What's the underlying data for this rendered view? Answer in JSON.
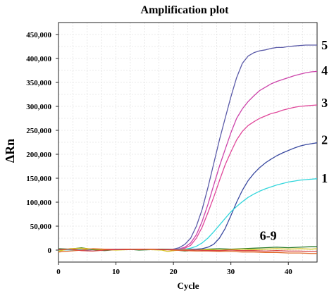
{
  "chart_data": {
    "type": "line",
    "title": "Amplification plot",
    "xlabel": "Cycle",
    "ylabel": "ΔRn",
    "xlim": [
      0,
      45
    ],
    "ylim": [
      -25000,
      475000
    ],
    "xticks": [
      0,
      10,
      20,
      30,
      40
    ],
    "yticks": [
      0,
      50000,
      100000,
      150000,
      200000,
      250000,
      300000,
      350000,
      400000,
      450000
    ],
    "ytick_labels": [
      "0",
      "50,000",
      "100,000",
      "150,000",
      "200,000",
      "250,000",
      "300,000",
      "350,000",
      "400,000",
      "450,000"
    ],
    "grid": true,
    "series": [
      {
        "name": "5",
        "color": "#5a5aa8",
        "x": [
          0,
          5,
          10,
          15,
          20,
          21,
          22,
          23,
          24,
          25,
          26,
          27,
          28,
          29,
          30,
          31,
          32,
          33,
          34,
          35,
          36,
          37,
          38,
          39,
          40,
          41,
          42,
          43,
          44,
          45
        ],
        "y": [
          2000,
          1000,
          1500,
          1000,
          2000,
          5000,
          12000,
          25000,
          50000,
          85000,
          130000,
          180000,
          230000,
          275000,
          320000,
          360000,
          390000,
          405000,
          412000,
          416000,
          418000,
          421000,
          423000,
          423000,
          425000,
          426000,
          427000,
          428000,
          428000,
          428000
        ]
      },
      {
        "name": "4",
        "color": "#cc44aa",
        "x": [
          0,
          5,
          10,
          15,
          20,
          21,
          22,
          23,
          24,
          25,
          26,
          27,
          28,
          29,
          30,
          31,
          32,
          33,
          34,
          35,
          36,
          37,
          38,
          39,
          40,
          41,
          42,
          43,
          44,
          45
        ],
        "y": [
          1500,
          1000,
          1500,
          2000,
          1500,
          2500,
          6000,
          15000,
          32000,
          60000,
          95000,
          135000,
          175000,
          210000,
          245000,
          275000,
          295000,
          310000,
          322000,
          333000,
          340000,
          347000,
          352000,
          356000,
          360000,
          364000,
          367000,
          370000,
          372000,
          373000
        ]
      },
      {
        "name": "3",
        "color": "#e0479a",
        "x": [
          0,
          5,
          10,
          15,
          20,
          21,
          22,
          23,
          24,
          25,
          26,
          27,
          28,
          29,
          30,
          31,
          32,
          33,
          34,
          35,
          36,
          37,
          38,
          39,
          40,
          41,
          42,
          43,
          44,
          45
        ],
        "y": [
          1500,
          1500,
          2000,
          1500,
          1000,
          2000,
          4000,
          10000,
          25000,
          48000,
          78000,
          110000,
          145000,
          178000,
          205000,
          230000,
          248000,
          260000,
          268000,
          275000,
          280000,
          285000,
          288000,
          292000,
          295000,
          298000,
          300000,
          301000,
          302000,
          303000
        ]
      },
      {
        "name": "2",
        "color": "#3a4aa0",
        "x": [
          0,
          5,
          10,
          15,
          20,
          22,
          24,
          25,
          26,
          27,
          28,
          29,
          30,
          31,
          32,
          33,
          34,
          35,
          36,
          37,
          38,
          39,
          40,
          41,
          42,
          43,
          44,
          45
        ],
        "y": [
          1000,
          500,
          1500,
          1500,
          1000,
          1500,
          2000,
          3000,
          6000,
          12000,
          25000,
          45000,
          72000,
          100000,
          125000,
          145000,
          160000,
          172000,
          182000,
          190000,
          197000,
          203000,
          208000,
          213000,
          217000,
          220000,
          222000,
          224000
        ]
      },
      {
        "name": "1",
        "color": "#33d6dc",
        "x": [
          0,
          5,
          10,
          15,
          20,
          22,
          23,
          24,
          25,
          26,
          27,
          28,
          29,
          30,
          31,
          32,
          33,
          34,
          35,
          36,
          37,
          38,
          39,
          40,
          41,
          42,
          43,
          44,
          45
        ],
        "y": [
          500,
          1000,
          1500,
          1500,
          1500,
          2000,
          4000,
          8000,
          15000,
          25000,
          38000,
          52000,
          66000,
          80000,
          91000,
          101000,
          110000,
          117000,
          123000,
          128000,
          132000,
          136000,
          139000,
          142000,
          144000,
          146000,
          147000,
          148000,
          149000
        ]
      },
      {
        "name": "6",
        "color": "#2a7a2a",
        "x": [
          0,
          2,
          4,
          6,
          8,
          10,
          12,
          14,
          16,
          18,
          20,
          22,
          24,
          26,
          28,
          30,
          32,
          34,
          36,
          38,
          40,
          42,
          44,
          45
        ],
        "y": [
          3000,
          2000,
          5000,
          1000,
          -1000,
          1000,
          2000,
          0,
          1000,
          2000,
          1000,
          -2000,
          0,
          2000,
          3000,
          2000,
          3000,
          4000,
          5000,
          6000,
          5000,
          6000,
          7000,
          7000
        ]
      },
      {
        "name": "7",
        "color": "#d4c21a",
        "x": [
          0,
          2,
          4,
          6,
          8,
          10,
          12,
          14,
          16,
          18,
          19,
          20,
          22,
          24,
          26,
          28,
          30,
          32,
          34,
          36,
          38,
          40,
          42,
          44,
          45
        ],
        "y": [
          -2000,
          3000,
          4000,
          2000,
          1000,
          0,
          1000,
          2000,
          1000,
          0,
          -3000,
          -1000,
          1000,
          0,
          1000,
          0,
          1000,
          2000,
          1000,
          2000,
          3000,
          2000,
          3000,
          2000,
          3000
        ]
      },
      {
        "name": "8",
        "color": "#e06a2a",
        "x": [
          0,
          2,
          4,
          6,
          8,
          10,
          12,
          14,
          16,
          18,
          20,
          22,
          24,
          26,
          28,
          30,
          32,
          34,
          36,
          38,
          40,
          42,
          44,
          45
        ],
        "y": [
          -4000,
          -2000,
          0,
          3000,
          2000,
          1000,
          2000,
          1000,
          2000,
          1000,
          0,
          -1000,
          -2000,
          -2000,
          -3000,
          -3000,
          -4000,
          -4000,
          -5000,
          -5000,
          -6000,
          -6000,
          -7000,
          -7000
        ]
      },
      {
        "name": "9",
        "color": "#d94040",
        "x": [
          0,
          2,
          4,
          6,
          8,
          10,
          12,
          14,
          16,
          18,
          20,
          22,
          24,
          26,
          28,
          30,
          32,
          34,
          36,
          38,
          40,
          42,
          44,
          45
        ],
        "y": [
          1000,
          2000,
          -1000,
          -2000,
          0,
          1000,
          1000,
          2000,
          2000,
          1000,
          1000,
          0,
          0,
          -1000,
          -1000,
          0,
          -1000,
          -1000,
          -2000,
          -1000,
          -2000,
          -2000,
          -3000,
          -3000
        ]
      }
    ],
    "curve_labels": [
      {
        "text": "5",
        "x": 46.3,
        "y": 428000
      },
      {
        "text": "4",
        "x": 46.3,
        "y": 375000
      },
      {
        "text": "3",
        "x": 46.3,
        "y": 307000
      },
      {
        "text": "2",
        "x": 46.3,
        "y": 230000
      },
      {
        "text": "1",
        "x": 46.3,
        "y": 150000
      },
      {
        "text": "6-9",
        "x": 36.5,
        "y": 30000
      }
    ]
  }
}
